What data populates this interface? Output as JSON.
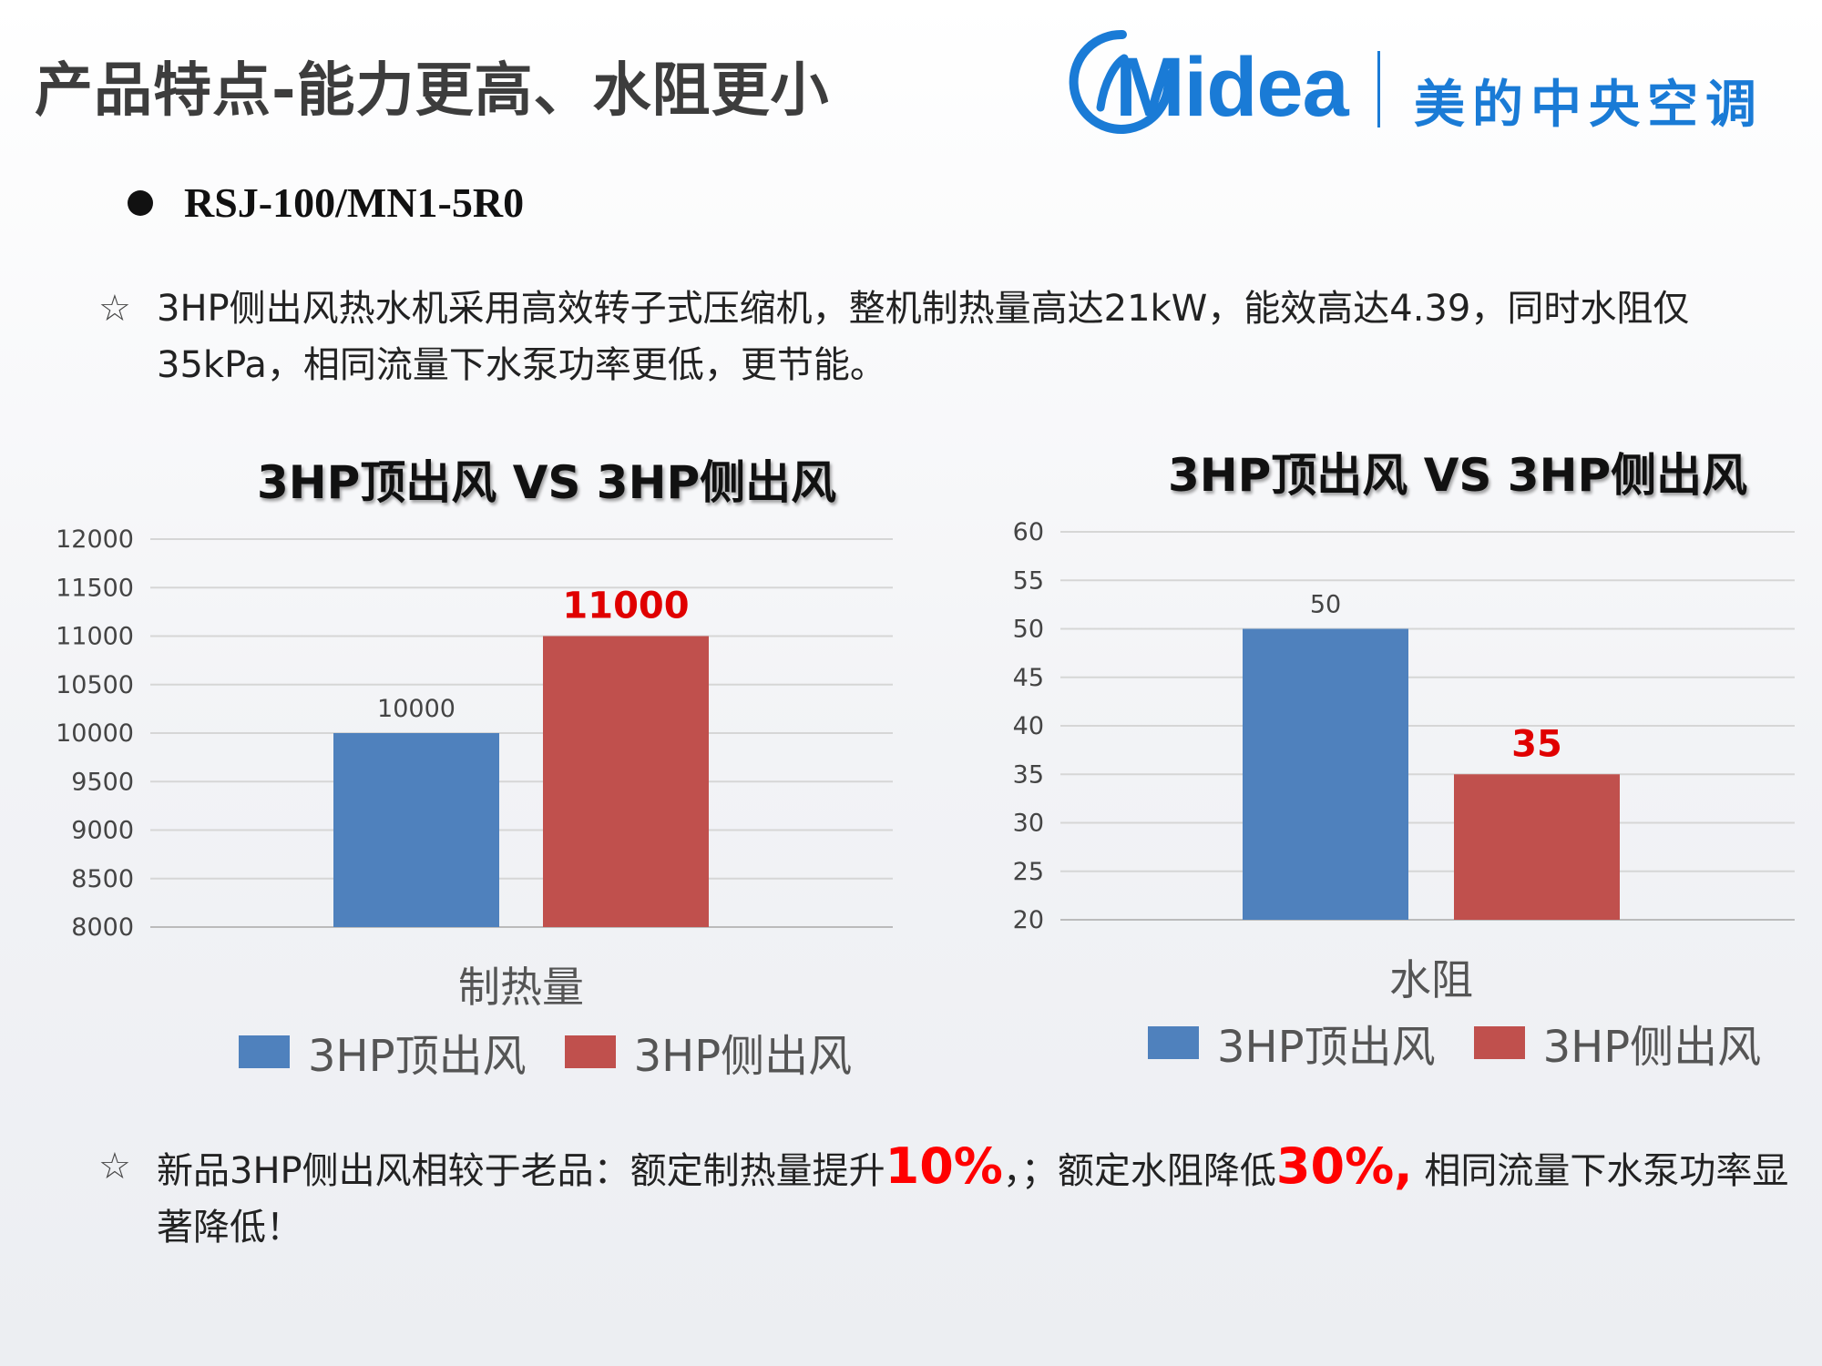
{
  "header": {
    "title": "产品特点-能力更高、水阻更小",
    "logo_text": "Midea",
    "logo_cn": "美的中央空调"
  },
  "model": "RSJ-100/MN1-5R0",
  "intro": {
    "star": "☆",
    "text": "3HP侧出风热水机采用高效转子式压缩机，整机制热量高达21kW，能效高达4.39，同时水阻仅35kPa，相同流量下水泵功率更低，更节能。"
  },
  "summary": {
    "star": "☆",
    "part1": "新品3HP侧出风相较于老品：额定制热量提升",
    "hl1": "10%",
    "part2": "，；额定水阻降低",
    "hl2": "30%,",
    "part3": " 相同流量下水泵功率显著降低！"
  },
  "colors": {
    "blue": "#4f81bd",
    "red": "#c0504d",
    "brand": "#1a7bd6"
  },
  "chart_data": [
    {
      "type": "bar",
      "title": "3HP顶出风 VS 3HP侧出风",
      "categories": [
        "制热量"
      ],
      "series": [
        {
          "name": "3HP顶出风",
          "values": [
            10000
          ],
          "label": "10000",
          "color": "#4f81bd"
        },
        {
          "name": "3HP侧出风",
          "values": [
            11000
          ],
          "label": "11000",
          "color": "#c0504d"
        }
      ],
      "ylim": [
        8000,
        12000
      ],
      "yticks": [
        "8000",
        "8500",
        "9000",
        "9500",
        "10000",
        "10500",
        "11000",
        "11500",
        "12000"
      ],
      "grid": true,
      "legend": "bottom"
    },
    {
      "type": "bar",
      "title": "3HP顶出风 VS 3HP侧出风",
      "categories": [
        "水阻"
      ],
      "series": [
        {
          "name": "3HP顶出风",
          "values": [
            50
          ],
          "label": "50",
          "color": "#4f81bd"
        },
        {
          "name": "3HP侧出风",
          "values": [
            35
          ],
          "label": "35",
          "color": "#c0504d"
        }
      ],
      "ylim": [
        20,
        60
      ],
      "yticks": [
        "20",
        "25",
        "30",
        "35",
        "40",
        "45",
        "50",
        "55",
        "60"
      ],
      "grid": true,
      "legend": "bottom"
    }
  ]
}
